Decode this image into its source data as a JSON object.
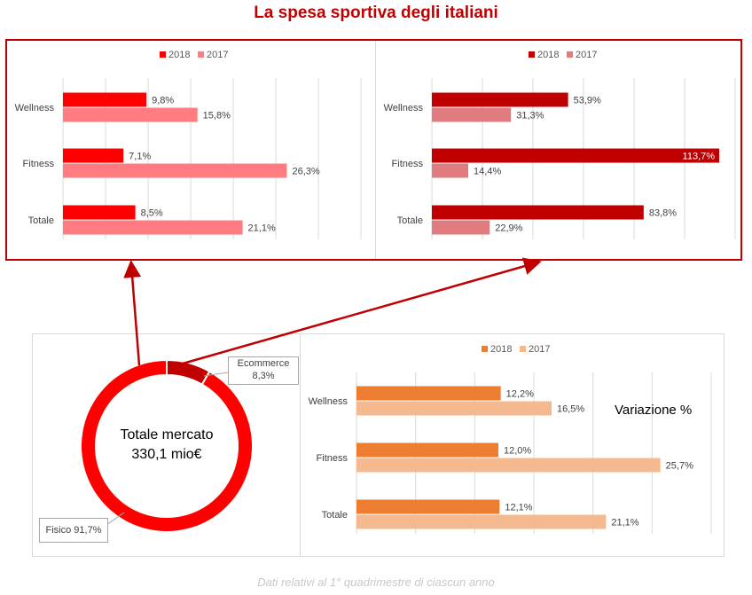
{
  "title": "La spesa sportiva degli italiani",
  "footnote": "Dati relativi al 1° quadrimestre di ciascun anno",
  "variazione_label": "Variazione %",
  "donut_center": {
    "line1": "Totale mercato",
    "line2": "330,1 mio€"
  },
  "chart_data": [
    {
      "type": "bar",
      "orientation": "horizontal",
      "categories": [
        "Wellness",
        "Fitness",
        "Totale"
      ],
      "legend_position": "top",
      "grid": true,
      "xlim": [
        0,
        35
      ],
      "series": [
        {
          "name": "2018",
          "values": [
            9.8,
            7.1,
            8.5
          ],
          "labels": [
            "9,8%",
            "7,1%",
            "8,5%"
          ],
          "color": "#ff0000"
        },
        {
          "name": "2017",
          "values": [
            15.8,
            26.3,
            21.1
          ],
          "labels": [
            "15,8%",
            "26,3%",
            "21,1%"
          ],
          "color": "#ff7c80"
        }
      ]
    },
    {
      "type": "bar",
      "orientation": "horizontal",
      "categories": [
        "Wellness",
        "Fitness",
        "Totale"
      ],
      "legend_position": "top",
      "grid": true,
      "xlim": [
        0,
        120
      ],
      "series": [
        {
          "name": "2018",
          "values": [
            53.9,
            113.7,
            83.8
          ],
          "labels": [
            "53,9%",
            "113,7%",
            "83,8%"
          ],
          "color": "#c00000"
        },
        {
          "name": "2017",
          "values": [
            31.3,
            14.4,
            22.9
          ],
          "labels": [
            "31,3%",
            "14,4%",
            "22,9%"
          ],
          "color": "#e07b80"
        }
      ]
    },
    {
      "type": "pie",
      "donut": true,
      "slices": [
        {
          "label": "Ecommerce",
          "value": 8.3,
          "value_label": "8,3%",
          "color": "#c00000"
        },
        {
          "label": "Fisico",
          "value": 91.7,
          "value_label": "91,7%",
          "color": "#ff0000"
        }
      ]
    },
    {
      "type": "bar",
      "orientation": "horizontal",
      "categories": [
        "Wellness",
        "Fitness",
        "Totale"
      ],
      "legend_position": "top",
      "grid": true,
      "xlim": [
        0,
        30
      ],
      "series": [
        {
          "name": "2018",
          "values": [
            12.2,
            12.0,
            12.1
          ],
          "labels": [
            "12,2%",
            "12,0%",
            "12,1%"
          ],
          "color": "#ed7d31"
        },
        {
          "name": "2017",
          "values": [
            16.5,
            25.7,
            21.1
          ],
          "labels": [
            "16,5%",
            "25,7%",
            "21,1%"
          ],
          "color": "#f4b98f"
        }
      ]
    }
  ]
}
